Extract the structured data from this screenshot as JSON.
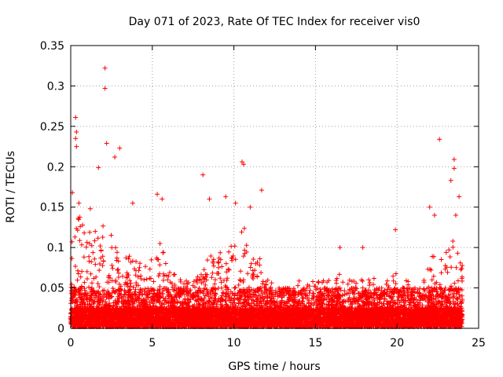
{
  "chart_data": {
    "type": "scatter",
    "title": "Day 071 of 2023, Rate Of TEC Index for receiver vis0",
    "xlabel": "GPS time / hours",
    "ylabel": "ROTI / TECUs",
    "xlim": [
      0,
      25
    ],
    "ylim": [
      0,
      0.35
    ],
    "x_ticks": [
      "0",
      "5",
      "10",
      "15",
      "20",
      "25"
    ],
    "y_ticks": [
      "0",
      "0.05",
      "0.1",
      "0.15",
      "0.2",
      "0.25",
      "0.3",
      "0.35"
    ],
    "grid": true,
    "marker": "plus",
    "color": "#ff0000",
    "notable_points": [
      {
        "x": 2.1,
        "y": 0.322
      },
      {
        "x": 2.1,
        "y": 0.297
      },
      {
        "x": 0.3,
        "y": 0.261
      },
      {
        "x": 0.35,
        "y": 0.243
      },
      {
        "x": 0.3,
        "y": 0.235
      },
      {
        "x": 0.35,
        "y": 0.225
      },
      {
        "x": 2.2,
        "y": 0.229
      },
      {
        "x": 3.0,
        "y": 0.223
      },
      {
        "x": 1.7,
        "y": 0.199
      },
      {
        "x": 2.7,
        "y": 0.212
      },
      {
        "x": 8.1,
        "y": 0.19
      },
      {
        "x": 10.5,
        "y": 0.206
      },
      {
        "x": 10.6,
        "y": 0.203
      },
      {
        "x": 11.7,
        "y": 0.171
      },
      {
        "x": 22.6,
        "y": 0.234
      },
      {
        "x": 23.5,
        "y": 0.209
      },
      {
        "x": 23.5,
        "y": 0.198
      },
      {
        "x": 23.3,
        "y": 0.183
      },
      {
        "x": 23.8,
        "y": 0.163
      },
      {
        "x": 0.1,
        "y": 0.168
      },
      {
        "x": 0.5,
        "y": 0.155
      },
      {
        "x": 1.2,
        "y": 0.148
      },
      {
        "x": 3.8,
        "y": 0.155
      },
      {
        "x": 5.3,
        "y": 0.166
      },
      {
        "x": 5.6,
        "y": 0.16
      },
      {
        "x": 8.5,
        "y": 0.16
      },
      {
        "x": 9.5,
        "y": 0.163
      },
      {
        "x": 10.1,
        "y": 0.155
      },
      {
        "x": 11.0,
        "y": 0.15
      },
      {
        "x": 16.5,
        "y": 0.1
      },
      {
        "x": 17.9,
        "y": 0.1
      },
      {
        "x": 19.9,
        "y": 0.122
      },
      {
        "x": 22.0,
        "y": 0.15
      },
      {
        "x": 22.3,
        "y": 0.14
      },
      {
        "x": 23.6,
        "y": 0.14
      }
    ],
    "activity_envelope": {
      "x": [
        0,
        0.5,
        1,
        1.5,
        2,
        2.5,
        3,
        3.5,
        4,
        4.5,
        5,
        5.5,
        6,
        6.5,
        7,
        7.5,
        8,
        8.5,
        9,
        9.5,
        10,
        10.5,
        11,
        11.5,
        12,
        12.5,
        13,
        13.5,
        14,
        14.5,
        15,
        15.5,
        16,
        16.5,
        17,
        17.5,
        18,
        18.5,
        19,
        19.5,
        20,
        20.5,
        21,
        21.5,
        22,
        22.5,
        23,
        23.5,
        24
      ],
      "y": [
        0.11,
        0.14,
        0.12,
        0.12,
        0.14,
        0.12,
        0.1,
        0.09,
        0.09,
        0.08,
        0.09,
        0.11,
        0.07,
        0.07,
        0.06,
        0.06,
        0.07,
        0.09,
        0.1,
        0.1,
        0.12,
        0.13,
        0.11,
        0.09,
        0.07,
        0.06,
        0.05,
        0.05,
        0.06,
        0.06,
        0.06,
        0.06,
        0.06,
        0.07,
        0.06,
        0.06,
        0.06,
        0.07,
        0.06,
        0.06,
        0.07,
        0.06,
        0.06,
        0.05,
        0.09,
        0.1,
        0.1,
        0.11,
        0.08
      ]
    }
  }
}
